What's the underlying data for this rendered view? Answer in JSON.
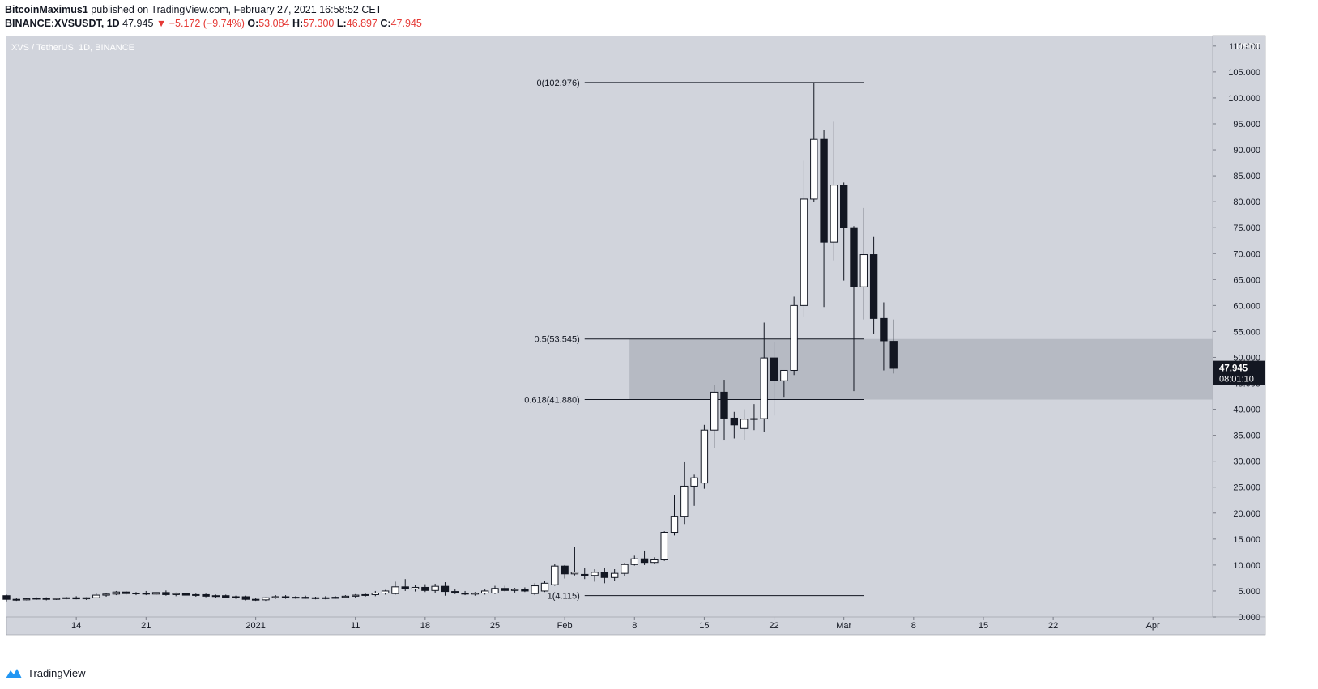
{
  "header": {
    "author": "BitcoinMaximus1",
    "published_text": "published on TradingView.com, February 27, 2021 16:58:52 CET",
    "symbol": "BINANCE:XVSUSDT, 1D",
    "last": "47.945",
    "change": "▼ −5.172 (−9.74%)",
    "o_label": "O:",
    "o_value": "53.084",
    "h_label": "H:",
    "h_value": "57.300",
    "l_label": "L:",
    "l_value": "46.897",
    "c_label": "C:",
    "c_value": "47.945"
  },
  "footer": {
    "brand": "TradingView"
  },
  "colors": {
    "background": "#d1d4dc",
    "up_fill": "#ffffff",
    "down_fill": "#131722",
    "zone": "#b2b5be",
    "price_label_bg": "#131722",
    "accent_red": "#e53935",
    "logo_blue": "#2196f3"
  },
  "chart_data": {
    "type": "candlestick",
    "title": "XVS / TetherUS, 1D, BINANCE",
    "y_unit": "USDT",
    "ylim": [
      0,
      112
    ],
    "y_ticks": [
      "0.000",
      "5.000",
      "10.000",
      "15.000",
      "20.000",
      "25.000",
      "30.000",
      "35.000",
      "40.000",
      "45.000",
      "50.000",
      "55.000",
      "60.000",
      "65.000",
      "70.000",
      "75.000",
      "80.000",
      "85.000",
      "90.000",
      "95.000",
      "100.000",
      "105.000",
      "110.000"
    ],
    "y_tick_values": [
      0,
      5,
      10,
      15,
      20,
      25,
      30,
      35,
      40,
      45,
      50,
      55,
      60,
      65,
      70,
      75,
      80,
      85,
      90,
      95,
      100,
      105,
      110
    ],
    "x_range": [
      "2020-12-07",
      "2021-04-07"
    ],
    "x_ticks": [
      {
        "date": "2020-12-14",
        "label": "14"
      },
      {
        "date": "2020-12-21",
        "label": "21"
      },
      {
        "date": "2021-01-01",
        "label": "2021"
      },
      {
        "date": "2021-01-11",
        "label": "11"
      },
      {
        "date": "2021-01-18",
        "label": "18"
      },
      {
        "date": "2021-01-25",
        "label": "25"
      },
      {
        "date": "2021-02-01",
        "label": "Feb"
      },
      {
        "date": "2021-02-08",
        "label": "8"
      },
      {
        "date": "2021-02-15",
        "label": "15"
      },
      {
        "date": "2021-02-22",
        "label": "22"
      },
      {
        "date": "2021-03-01",
        "label": "Mar"
      },
      {
        "date": "2021-03-08",
        "label": "8"
      },
      {
        "date": "2021-03-15",
        "label": "15"
      },
      {
        "date": "2021-03-22",
        "label": "22"
      },
      {
        "date": "2021-04-01",
        "label": "Apr"
      }
    ],
    "candles": [
      {
        "date": "2020-12-07",
        "o": 4.1,
        "h": 4.3,
        "l": 3.0,
        "c": 3.4
      },
      {
        "date": "2020-12-08",
        "o": 3.4,
        "h": 3.7,
        "l": 3.1,
        "c": 3.3
      },
      {
        "date": "2020-12-09",
        "o": 3.3,
        "h": 3.7,
        "l": 3.2,
        "c": 3.5
      },
      {
        "date": "2020-12-10",
        "o": 3.5,
        "h": 3.8,
        "l": 3.3,
        "c": 3.6
      },
      {
        "date": "2020-12-11",
        "o": 3.6,
        "h": 3.8,
        "l": 3.2,
        "c": 3.4
      },
      {
        "date": "2020-12-12",
        "o": 3.4,
        "h": 3.7,
        "l": 3.3,
        "c": 3.6
      },
      {
        "date": "2020-12-13",
        "o": 3.6,
        "h": 3.9,
        "l": 3.4,
        "c": 3.7
      },
      {
        "date": "2020-12-14",
        "o": 3.7,
        "h": 4.0,
        "l": 3.4,
        "c": 3.5
      },
      {
        "date": "2020-12-15",
        "o": 3.5,
        "h": 3.8,
        "l": 3.3,
        "c": 3.7
      },
      {
        "date": "2020-12-16",
        "o": 3.7,
        "h": 4.6,
        "l": 3.6,
        "c": 4.2
      },
      {
        "date": "2020-12-17",
        "o": 4.2,
        "h": 4.6,
        "l": 3.9,
        "c": 4.4
      },
      {
        "date": "2020-12-18",
        "o": 4.4,
        "h": 5.0,
        "l": 4.2,
        "c": 4.8
      },
      {
        "date": "2020-12-19",
        "o": 4.8,
        "h": 5.0,
        "l": 4.3,
        "c": 4.5
      },
      {
        "date": "2020-12-20",
        "o": 4.5,
        "h": 4.8,
        "l": 4.2,
        "c": 4.6
      },
      {
        "date": "2020-12-21",
        "o": 4.6,
        "h": 5.0,
        "l": 4.2,
        "c": 4.4
      },
      {
        "date": "2020-12-22",
        "o": 4.4,
        "h": 4.8,
        "l": 4.2,
        "c": 4.7
      },
      {
        "date": "2020-12-23",
        "o": 4.7,
        "h": 5.1,
        "l": 4.1,
        "c": 4.3
      },
      {
        "date": "2020-12-24",
        "o": 4.3,
        "h": 4.7,
        "l": 4.0,
        "c": 4.5
      },
      {
        "date": "2020-12-25",
        "o": 4.5,
        "h": 4.7,
        "l": 4.0,
        "c": 4.2
      },
      {
        "date": "2020-12-26",
        "o": 4.2,
        "h": 4.5,
        "l": 3.9,
        "c": 4.3
      },
      {
        "date": "2020-12-27",
        "o": 4.3,
        "h": 4.5,
        "l": 3.8,
        "c": 4.0
      },
      {
        "date": "2020-12-28",
        "o": 4.0,
        "h": 4.3,
        "l": 3.7,
        "c": 4.1
      },
      {
        "date": "2020-12-29",
        "o": 4.1,
        "h": 4.3,
        "l": 3.6,
        "c": 3.8
      },
      {
        "date": "2020-12-30",
        "o": 3.8,
        "h": 4.1,
        "l": 3.5,
        "c": 3.9
      },
      {
        "date": "2020-12-31",
        "o": 3.9,
        "h": 4.1,
        "l": 3.2,
        "c": 3.4
      },
      {
        "date": "2021-01-01",
        "o": 3.4,
        "h": 3.7,
        "l": 3.1,
        "c": 3.3
      },
      {
        "date": "2021-01-02",
        "o": 3.3,
        "h": 3.8,
        "l": 3.1,
        "c": 3.7
      },
      {
        "date": "2021-01-03",
        "o": 3.7,
        "h": 4.2,
        "l": 3.5,
        "c": 3.9
      },
      {
        "date": "2021-01-04",
        "o": 3.9,
        "h": 4.2,
        "l": 3.5,
        "c": 3.7
      },
      {
        "date": "2021-01-05",
        "o": 3.7,
        "h": 4.0,
        "l": 3.5,
        "c": 3.8
      },
      {
        "date": "2021-01-06",
        "o": 3.8,
        "h": 4.1,
        "l": 3.5,
        "c": 3.6
      },
      {
        "date": "2021-01-07",
        "o": 3.6,
        "h": 3.9,
        "l": 3.4,
        "c": 3.7
      },
      {
        "date": "2021-01-08",
        "o": 3.7,
        "h": 4.0,
        "l": 3.4,
        "c": 3.6
      },
      {
        "date": "2021-01-09",
        "o": 3.6,
        "h": 4.0,
        "l": 3.5,
        "c": 3.8
      },
      {
        "date": "2021-01-10",
        "o": 3.8,
        "h": 4.2,
        "l": 3.6,
        "c": 4.0
      },
      {
        "date": "2021-01-11",
        "o": 4.0,
        "h": 4.4,
        "l": 3.7,
        "c": 4.2
      },
      {
        "date": "2021-01-12",
        "o": 4.2,
        "h": 4.6,
        "l": 3.9,
        "c": 4.3
      },
      {
        "date": "2021-01-13",
        "o": 4.3,
        "h": 5.0,
        "l": 4.0,
        "c": 4.6
      },
      {
        "date": "2021-01-14",
        "o": 4.6,
        "h": 5.2,
        "l": 4.3,
        "c": 5.0
      },
      {
        "date": "2021-01-15",
        "o": 4.5,
        "h": 6.8,
        "l": 4.3,
        "c": 5.8
      },
      {
        "date": "2021-01-16",
        "o": 5.8,
        "h": 7.3,
        "l": 5.0,
        "c": 5.4
      },
      {
        "date": "2021-01-17",
        "o": 5.4,
        "h": 6.2,
        "l": 4.9,
        "c": 5.7
      },
      {
        "date": "2021-01-18",
        "o": 5.7,
        "h": 6.3,
        "l": 4.8,
        "c": 5.1
      },
      {
        "date": "2021-01-19",
        "o": 5.1,
        "h": 6.4,
        "l": 4.6,
        "c": 5.9
      },
      {
        "date": "2021-01-20",
        "o": 5.9,
        "h": 6.7,
        "l": 4.1,
        "c": 4.9
      },
      {
        "date": "2021-01-21",
        "o": 4.9,
        "h": 5.3,
        "l": 4.4,
        "c": 4.6
      },
      {
        "date": "2021-01-22",
        "o": 4.6,
        "h": 5.0,
        "l": 4.2,
        "c": 4.4
      },
      {
        "date": "2021-01-23",
        "o": 4.4,
        "h": 4.8,
        "l": 4.1,
        "c": 4.6
      },
      {
        "date": "2021-01-24",
        "o": 4.6,
        "h": 5.3,
        "l": 4.3,
        "c": 5.0
      },
      {
        "date": "2021-01-25",
        "o": 4.6,
        "h": 6.0,
        "l": 4.4,
        "c": 5.5
      },
      {
        "date": "2021-01-26",
        "o": 5.5,
        "h": 6.0,
        "l": 4.9,
        "c": 5.1
      },
      {
        "date": "2021-01-27",
        "o": 5.1,
        "h": 5.6,
        "l": 4.7,
        "c": 5.3
      },
      {
        "date": "2021-01-28",
        "o": 5.3,
        "h": 5.7,
        "l": 4.8,
        "c": 5.0
      },
      {
        "date": "2021-01-29",
        "o": 4.5,
        "h": 6.5,
        "l": 4.2,
        "c": 6.0
      },
      {
        "date": "2021-01-30",
        "o": 5.0,
        "h": 7.0,
        "l": 4.8,
        "c": 6.5
      },
      {
        "date": "2021-01-31",
        "o": 6.2,
        "h": 10.2,
        "l": 6.0,
        "c": 9.8
      },
      {
        "date": "2021-02-01",
        "o": 9.8,
        "h": 10.0,
        "l": 7.4,
        "c": 8.3
      },
      {
        "date": "2021-02-02",
        "o": 8.3,
        "h": 13.5,
        "l": 8.0,
        "c": 8.6
      },
      {
        "date": "2021-02-03",
        "o": 8.2,
        "h": 9.4,
        "l": 7.3,
        "c": 8.0
      },
      {
        "date": "2021-02-04",
        "o": 8.0,
        "h": 9.2,
        "l": 6.8,
        "c": 8.6
      },
      {
        "date": "2021-02-05",
        "o": 8.6,
        "h": 9.4,
        "l": 6.5,
        "c": 7.6
      },
      {
        "date": "2021-02-06",
        "o": 7.6,
        "h": 9.2,
        "l": 7.0,
        "c": 8.4
      },
      {
        "date": "2021-02-07",
        "o": 8.4,
        "h": 10.4,
        "l": 7.9,
        "c": 10.1
      },
      {
        "date": "2021-02-08",
        "o": 10.1,
        "h": 11.8,
        "l": 9.9,
        "c": 11.2
      },
      {
        "date": "2021-02-09",
        "o": 11.2,
        "h": 12.8,
        "l": 10.0,
        "c": 10.5
      },
      {
        "date": "2021-02-10",
        "o": 10.5,
        "h": 11.5,
        "l": 10.2,
        "c": 11.0
      },
      {
        "date": "2021-02-11",
        "o": 11.0,
        "h": 16.5,
        "l": 10.8,
        "c": 16.3
      },
      {
        "date": "2021-02-12",
        "o": 16.3,
        "h": 23.5,
        "l": 15.7,
        "c": 19.4
      },
      {
        "date": "2021-02-13",
        "o": 19.4,
        "h": 29.8,
        "l": 17.9,
        "c": 25.2
      },
      {
        "date": "2021-02-14",
        "o": 25.2,
        "h": 27.4,
        "l": 21.4,
        "c": 26.8
      },
      {
        "date": "2021-02-15",
        "o": 25.8,
        "h": 37.0,
        "l": 24.7,
        "c": 36.0
      },
      {
        "date": "2021-02-16",
        "o": 36.0,
        "h": 44.7,
        "l": 32.6,
        "c": 43.3
      },
      {
        "date": "2021-02-17",
        "o": 43.3,
        "h": 45.7,
        "l": 34.0,
        "c": 38.3
      },
      {
        "date": "2021-02-18",
        "o": 38.3,
        "h": 39.5,
        "l": 34.4,
        "c": 37.0
      },
      {
        "date": "2021-02-19",
        "o": 36.3,
        "h": 40.0,
        "l": 34.0,
        "c": 38.1
      },
      {
        "date": "2021-02-20",
        "o": 38.1,
        "h": 41.0,
        "l": 36.0,
        "c": 38.2
      },
      {
        "date": "2021-02-21",
        "o": 38.2,
        "h": 56.7,
        "l": 35.7,
        "c": 49.9
      },
      {
        "date": "2021-02-22",
        "o": 49.9,
        "h": 53.0,
        "l": 38.8,
        "c": 45.5
      },
      {
        "date": "2021-02-23",
        "o": 45.5,
        "h": 47.0,
        "l": 42.4,
        "c": 47.5
      },
      {
        "date": "2021-02-24",
        "o": 47.5,
        "h": 61.7,
        "l": 46.6,
        "c": 60.0
      },
      {
        "date": "2021-02-25",
        "o": 60.0,
        "h": 87.9,
        "l": 57.9,
        "c": 80.5
      },
      {
        "date": "2021-02-26",
        "o": 80.5,
        "h": 103.0,
        "l": 80.0,
        "c": 92.0
      },
      {
        "date": "2021-02-27",
        "o": 92.0,
        "h": 93.8,
        "l": 59.7,
        "c": 72.2
      },
      {
        "date": "2021-02-28",
        "o": 72.2,
        "h": 95.4,
        "l": 68.7,
        "c": 83.2
      },
      {
        "date": "2021-03-01",
        "o": 83.2,
        "h": 83.7,
        "l": 64.8,
        "c": 75.0
      },
      {
        "date": "2021-03-02",
        "o": 75.0,
        "h": 75.3,
        "l": 43.5,
        "c": 63.6
      },
      {
        "date": "2021-03-03",
        "o": 63.6,
        "h": 78.8,
        "l": 57.3,
        "c": 69.8
      },
      {
        "date": "2021-03-04",
        "o": 69.8,
        "h": 73.2,
        "l": 54.6,
        "c": 57.5
      },
      {
        "date": "2021-03-05",
        "o": 57.5,
        "h": 60.6,
        "l": 47.5,
        "c": 53.2
      },
      {
        "date": "2021-03-06",
        "o": 53.1,
        "h": 57.3,
        "l": 46.9,
        "c": 47.9
      }
    ],
    "fib_levels": [
      {
        "label": "0(102.976)",
        "value": 102.976
      },
      {
        "label": "0.5(53.545)",
        "value": 53.545
      },
      {
        "label": "0.618(41.880)",
        "value": 41.88
      },
      {
        "label": "1(4.115)",
        "value": 4.115
      }
    ],
    "fib_start_date": "2021-02-03",
    "fib_end_date": "2021-03-03",
    "zone": {
      "from_date": "2021-02-08",
      "high": 53.545,
      "low": 41.88
    },
    "last_price_label": {
      "value": 47.945,
      "price_text": "47.945",
      "countdown_text": "08:01:10"
    }
  }
}
